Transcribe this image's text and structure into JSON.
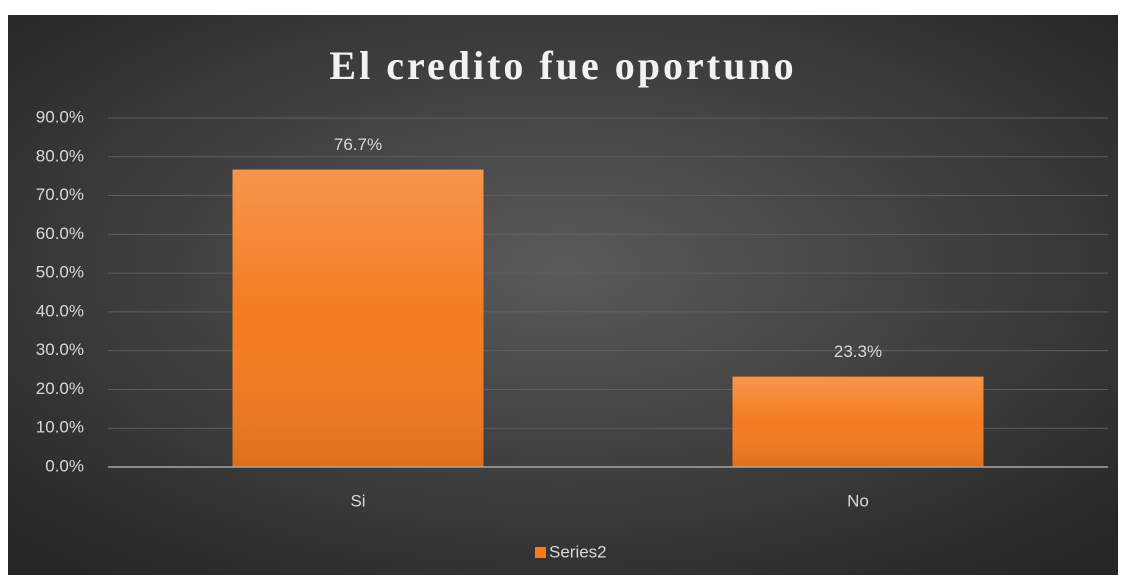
{
  "chart_data": {
    "type": "bar",
    "title": "El credito fue oportuno",
    "categories": [
      "Si",
      "No"
    ],
    "series": [
      {
        "name": "Series2",
        "color": "#f47b20",
        "values": [
          76.7,
          23.3
        ],
        "value_labels": [
          "76.7%",
          "23.3%"
        ]
      }
    ],
    "ylim": [
      0,
      90
    ],
    "yticks": [
      {
        "value": 0,
        "label": "0.0%"
      },
      {
        "value": 10,
        "label": "10.0%"
      },
      {
        "value": 20,
        "label": "20.0%"
      },
      {
        "value": 30,
        "label": "30.0%"
      },
      {
        "value": 40,
        "label": "40.0%"
      },
      {
        "value": 50,
        "label": "50.0%"
      },
      {
        "value": 60,
        "label": "60.0%"
      },
      {
        "value": 70,
        "label": "70.0%"
      },
      {
        "value": 80,
        "label": "80.0%"
      },
      {
        "value": 90,
        "label": "90.0%"
      }
    ],
    "grid": true,
    "legend": "bottom"
  }
}
